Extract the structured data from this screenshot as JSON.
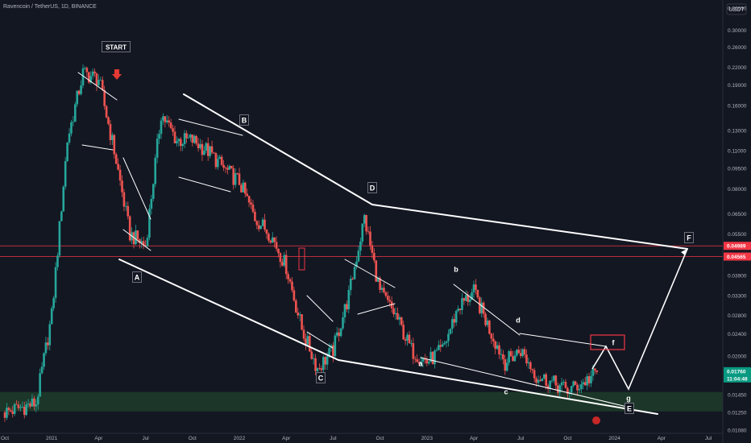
{
  "header": {
    "title": "Ravencoin / TetherUS, 1D, BINANCE"
  },
  "price_axis": {
    "currency": "USDT",
    "ticks": [
      "0.36000",
      "0.30000",
      "0.26000",
      "0.22000",
      "0.19000",
      "0.16000",
      "0.13000",
      "0.11000",
      "0.09500",
      "0.08000",
      "0.06500",
      "0.05500",
      "0.04600",
      "0.03900",
      "0.03300",
      "0.02800",
      "0.02400",
      "0.02000",
      "0.01700",
      "0.01450",
      "0.01250",
      "0.01080"
    ],
    "badges": [
      {
        "label": "0.04989",
        "color": "#f23645"
      },
      {
        "label": "0.04565",
        "color": "#f23645"
      },
      {
        "label": "0.01760",
        "color": "#089981"
      },
      {
        "label": "11:04:48",
        "color": "#089981"
      }
    ]
  },
  "time_axis": {
    "ticks": [
      "Oct",
      "2021",
      "Apr",
      "Jul",
      "Oct",
      "2022",
      "Apr",
      "Jul",
      "Oct",
      "2023",
      "Apr",
      "Jul",
      "Oct",
      "2024",
      "Apr",
      "Jul"
    ]
  },
  "annotations": {
    "labels": [
      "START",
      "A",
      "B",
      "C",
      "D",
      "a",
      "b",
      "c",
      "d",
      "f",
      "g",
      "E",
      "F"
    ],
    "colors": {
      "up": "#26a69a",
      "down": "#ef5350",
      "lines": "#ffffff",
      "zone": "#1e3b2a",
      "resistance": "#f23645"
    }
  },
  "chart_data": {
    "type": "candlestick",
    "title": "Ravencoin / TetherUS, 1D, BINANCE",
    "ylabel": "USDT",
    "y_scale": "log",
    "ylim": [
      0.0105,
      0.37
    ],
    "x": [
      "2020-10",
      "2020-11",
      "2020-12",
      "2021-01",
      "2021-02",
      "2021-03",
      "2021-04",
      "2021-05",
      "2021-06",
      "2021-07",
      "2021-08",
      "2021-09",
      "2021-10",
      "2021-11",
      "2021-12",
      "2022-01",
      "2022-02",
      "2022-03",
      "2022-04",
      "2022-05",
      "2022-06",
      "2022-07",
      "2022-08",
      "2022-09",
      "2022-10",
      "2022-11",
      "2022-12",
      "2023-01",
      "2023-02",
      "2023-03",
      "2023-04",
      "2023-05",
      "2023-06",
      "2023-07",
      "2023-08",
      "2023-09",
      "2023-10",
      "2023-11",
      "2023-12"
    ],
    "close": [
      0.0125,
      0.013,
      0.0135,
      0.028,
      0.12,
      0.21,
      0.2,
      0.11,
      0.055,
      0.05,
      0.15,
      0.12,
      0.12,
      0.11,
      0.095,
      0.085,
      0.063,
      0.055,
      0.042,
      0.025,
      0.018,
      0.021,
      0.033,
      0.063,
      0.034,
      0.028,
      0.021,
      0.019,
      0.021,
      0.03,
      0.034,
      0.025,
      0.019,
      0.021,
      0.017,
      0.016,
      0.015,
      0.016,
      0.0176
    ],
    "last_price": 0.0176,
    "horizontal_levels": [
      0.04989,
      0.04565
    ],
    "support_zone": [
      0.0126,
      0.0148
    ]
  }
}
